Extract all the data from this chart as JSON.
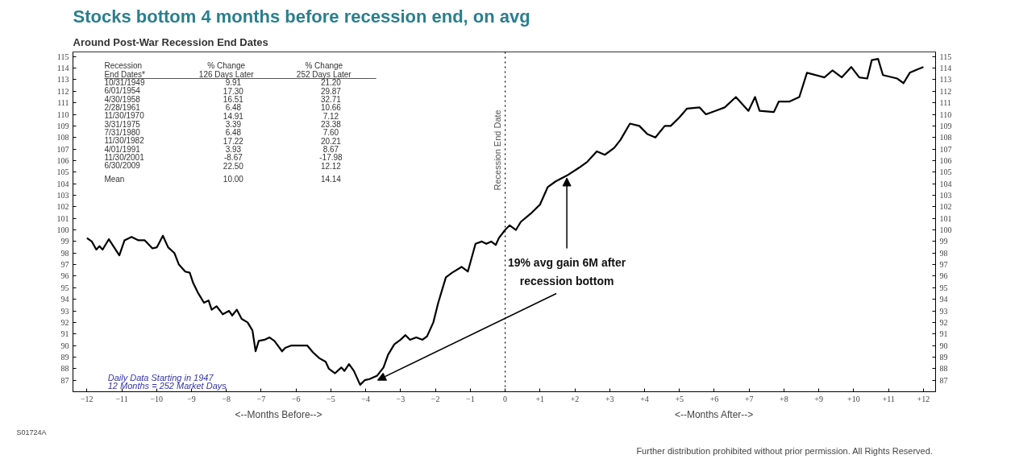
{
  "chart_data": {
    "type": "line",
    "title": "Stocks bottom 4 months before recession end, on avg",
    "subtitle": "Around Post-War Recession End Dates",
    "x": [
      -12,
      -11.86,
      -11.73,
      -11.64,
      -11.55,
      -11.37,
      -11.22,
      -11.07,
      -10.92,
      -10.72,
      -10.52,
      -10.34,
      -10.12,
      -9.99,
      -9.82,
      -9.67,
      -9.49,
      -9.36,
      -9.18,
      -9.05,
      -8.95,
      -8.82,
      -8.64,
      -8.51,
      -8.42,
      -8.28,
      -8.1,
      -7.92,
      -7.83,
      -7.7,
      -7.56,
      -7.39,
      -7.25,
      -7.16,
      -7.07,
      -6.9,
      -6.76,
      -6.62,
      -6.4,
      -6.31,
      -6.13,
      -5.95,
      -5.68,
      -5.51,
      -5.33,
      -5.15,
      -5.06,
      -4.88,
      -4.7,
      -4.61,
      -4.48,
      -4.34,
      -4.16,
      -4.03,
      -3.89,
      -3.67,
      -3.49,
      -3.36,
      -3.18,
      -3.0,
      -2.86,
      -2.73,
      -2.55,
      -2.37,
      -2.24,
      -2.06,
      -1.92,
      -1.7,
      -1.52,
      -1.25,
      -1.07,
      -0.85,
      -0.67,
      -0.54,
      -0.4,
      -0.27,
      -0.18,
      0,
      0.13,
      0.31,
      0.45,
      0.73,
      1.0,
      1.22,
      1.45,
      1.77,
      2.13,
      2.36,
      2.63,
      2.86,
      3.13,
      3.31,
      3.58,
      3.85,
      4.08,
      4.31,
      4.58,
      4.75,
      4.99,
      5.22,
      5.58,
      5.76,
      6.03,
      6.3,
      6.62,
      6.98,
      7.17,
      7.3,
      7.71,
      7.85,
      8.15,
      8.44,
      8.66,
      9.16,
      9.39,
      9.66,
      9.93,
      10.16,
      10.39,
      10.52,
      10.7,
      10.84,
      11.25,
      11.43,
      11.61,
      11.84,
      12.0
    ],
    "values": [
      99.3,
      99.0,
      98.3,
      98.6,
      98.3,
      99.2,
      98.5,
      97.8,
      99.1,
      99.4,
      99.1,
      99.1,
      98.4,
      98.5,
      99.5,
      98.5,
      98.0,
      97.0,
      96.4,
      96.3,
      95.4,
      94.6,
      93.7,
      93.9,
      93.1,
      93.4,
      92.7,
      93.0,
      92.6,
      93.1,
      92.3,
      92.0,
      91.3,
      89.5,
      90.4,
      90.5,
      90.7,
      90.4,
      89.5,
      89.8,
      90.0,
      90.0,
      90.0,
      89.4,
      88.9,
      88.6,
      88.0,
      87.6,
      88.1,
      87.8,
      88.4,
      87.8,
      86.6,
      87.0,
      87.1,
      87.4,
      88.1,
      89.2,
      90.1,
      90.5,
      90.9,
      90.5,
      90.7,
      90.5,
      90.8,
      92.0,
      93.7,
      95.9,
      96.3,
      96.8,
      96.4,
      98.8,
      99.0,
      98.8,
      99.0,
      98.7,
      99.3,
      100.0,
      100.4,
      100.0,
      100.7,
      101.4,
      102.2,
      103.7,
      104.2,
      104.7,
      105.4,
      105.9,
      106.8,
      106.5,
      107.1,
      107.8,
      109.2,
      109.0,
      108.3,
      108.0,
      109.0,
      109.0,
      109.7,
      110.5,
      110.6,
      110.0,
      110.3,
      110.6,
      111.5,
      110.3,
      111.5,
      110.3,
      110.2,
      111.1,
      111.1,
      111.5,
      113.6,
      113.2,
      113.8,
      113.2,
      114.1,
      113.2,
      113.1,
      114.7,
      114.8,
      113.4,
      113.1,
      112.7,
      113.6,
      113.9,
      114.1
    ],
    "color": "#000000",
    "xlim": [
      -12.4,
      12.35
    ],
    "xticks": [
      -12,
      -11,
      -10,
      -9,
      -8,
      -7,
      -6,
      -5,
      -4,
      -3,
      -2,
      -1,
      0,
      {
        "value": 1,
        "label": "+1"
      },
      {
        "value": 2,
        "label": "+2"
      },
      {
        "value": 3,
        "label": "+3"
      },
      {
        "value": 4,
        "label": "+4"
      },
      {
        "value": 5,
        "label": "+5"
      },
      {
        "value": 6,
        "label": "+6"
      },
      {
        "value": 7,
        "label": "+7"
      },
      {
        "value": 8,
        "label": "+8"
      },
      {
        "value": 9,
        "label": "+9"
      },
      {
        "value": 10,
        "label": "+10"
      },
      {
        "value": 11,
        "label": "+11"
      },
      {
        "value": 12,
        "label": "+12"
      }
    ],
    "ylim": [
      86.0,
      115.4
    ],
    "yticks": [
      87,
      88,
      89,
      90,
      91,
      92,
      93,
      94,
      95,
      96,
      97,
      98,
      99,
      100,
      101,
      102,
      103,
      104,
      105,
      106,
      107,
      108,
      109,
      110,
      111,
      112,
      113,
      114,
      115
    ],
    "y2lim": [
      86.0,
      115.4
    ],
    "y2ticks": [
      87,
      88,
      89,
      90,
      91,
      92,
      93,
      94,
      95,
      96,
      97,
      98,
      99,
      100,
      101,
      102,
      103,
      104,
      105,
      106,
      107,
      108,
      109,
      110,
      111,
      112,
      113,
      114,
      115
    ],
    "ref_lines": [
      {
        "axis": "x",
        "value": 0,
        "label": "Recession End Date",
        "line_style": "dotted",
        "color": "#000000"
      }
    ],
    "grid": false,
    "marker": "none",
    "line_style": "solid",
    "annotations": [
      {
        "text": "19% avg gain 6M after recession bottom",
        "x": 1.77,
        "y": 104.7
      },
      "Recession\t% Change\t% Change",
      "End Dates*\t126 Days Later\t252 Days Later",
      "10/31/1949\t9.91\t21.20",
      "6/01/1954\t17.30\t29.87",
      "4/30/1958\t16.51\t32.71",
      "2/28/1961\t6.48\t10.66",
      "11/30/1970\t14.91\t7.12",
      "3/31/1975\t3.39\t23.38",
      "7/31/1980\t6.48\t7.60",
      "11/30/1982\t17.22\t20.21",
      "4/01/1991\t3.93\t8.67",
      "11/30/2001\t-8.67\t-17.98",
      "6/30/2009\t22.50\t12.12",
      "Mean\t10.00\t14.14",
      "Daily Data Starting in 1947",
      "12 Months = 252 Market Days",
      "<--Months Before-->",
      "<--Months After-->",
      "S01724A",
      "Further distribution prohibited without prior permission.  All Rights Reserved."
    ]
  }
}
